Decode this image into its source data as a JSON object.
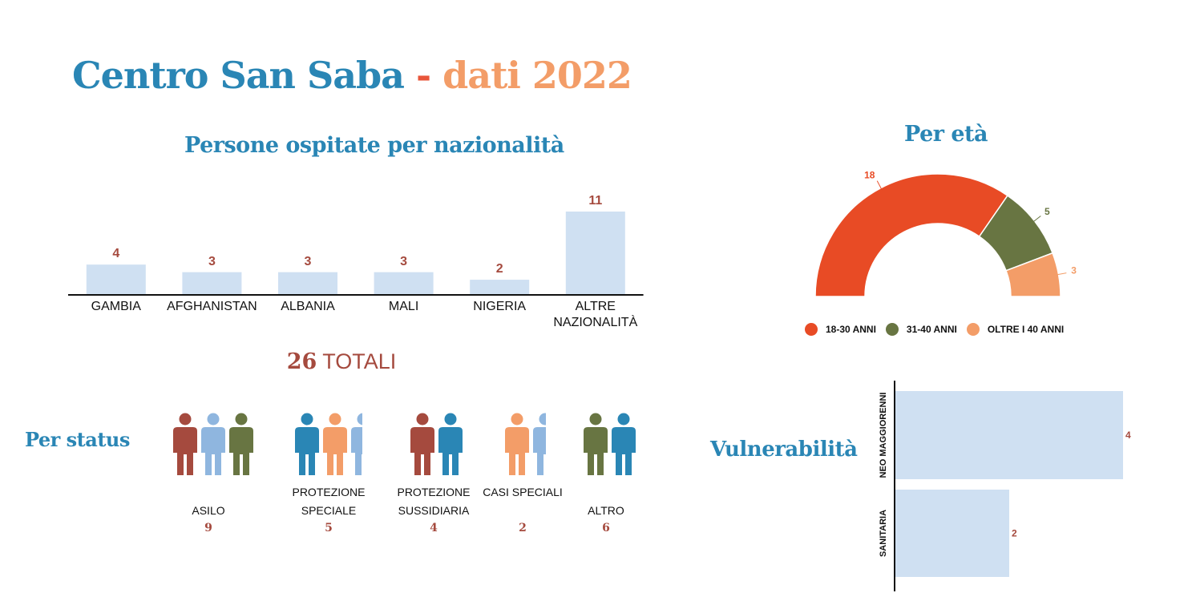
{
  "title": {
    "part1": "Centro San Saba",
    "separator": "-",
    "part2": "dati 2022"
  },
  "colors": {
    "blue": "#2a86b5",
    "orange": "#f39d68",
    "red_orange": "#e84b25",
    "olive": "#687542",
    "rust": "#a54a3e",
    "light_blue_bar": "#cfe0f2",
    "light_blue_person": "#8fb6df"
  },
  "totals": {
    "number": "26",
    "label": "TOTALI"
  },
  "chart_data": [
    {
      "type": "bar",
      "title": "Persone ospitate per nazionalità",
      "categories": [
        "GAMBIA",
        "AFGHANISTAN",
        "ALBANIA",
        "MALI",
        "NIGERIA",
        "ALTRE NAZIONALITÀ"
      ],
      "values": [
        4,
        3,
        3,
        3,
        2,
        11
      ],
      "ylim": [
        0,
        11
      ]
    },
    {
      "type": "pie",
      "variant": "half-donut",
      "title": "Per età",
      "categories": [
        "18-30 ANNI",
        "31-40 ANNI",
        "OLTRE I 40 ANNI"
      ],
      "values": [
        18,
        5,
        3
      ],
      "colors": [
        "#e84b25",
        "#687542",
        "#f39d68"
      ],
      "legend": "bottom"
    },
    {
      "type": "table",
      "title": "Per status",
      "categories": [
        "ASILO",
        "PROTEZIONE SPECIALE",
        "PROTEZIONE SUSSIDIARIA",
        "CASI SPECIALI",
        "ALTRO"
      ],
      "values": [
        9,
        5,
        4,
        2,
        6
      ]
    },
    {
      "type": "bar",
      "orientation": "horizontal",
      "title": "Vulnerabilità",
      "categories": [
        "NEO MAGGIORENNI",
        "SANITARIA"
      ],
      "values": [
        4,
        2
      ],
      "xlim": [
        0,
        4
      ]
    }
  ],
  "status_people": [
    [
      "#a54a3e",
      "#8fb6df",
      "#687542"
    ],
    [
      "#2a86b5",
      "#f39d68",
      "#8fb6df"
    ],
    [
      "#a54a3e",
      "#2a86b5"
    ],
    [
      "#f39d68",
      "#8fb6df"
    ],
    [
      "#687542",
      "#2a86b5"
    ]
  ],
  "icons": {
    "status": "person-icon"
  }
}
